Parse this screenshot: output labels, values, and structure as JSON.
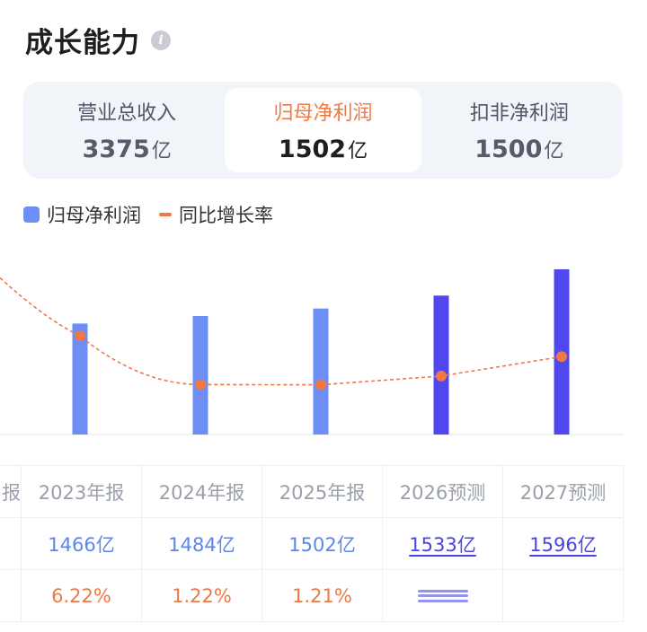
{
  "header": {
    "title": "成长能力",
    "info_icon": "info-icon"
  },
  "tabs": [
    {
      "label": "营业总收入",
      "value": "3375",
      "unit": "亿",
      "active": false
    },
    {
      "label": "归母净利润",
      "value": "1502",
      "unit": "亿",
      "active": true
    },
    {
      "label": "扣非净利润",
      "value": "1500",
      "unit": "亿",
      "active": false
    }
  ],
  "legend": {
    "bar_label": "归母净利润",
    "line_label": "同比增长率"
  },
  "colors": {
    "bar_actual": "#6c8ef5",
    "bar_forecast": "#5147ee",
    "line": "#f07845",
    "active_tab": "#f07845"
  },
  "chart_data": {
    "type": "bar",
    "categories": [
      "2023年报",
      "2024年报",
      "2025年报",
      "2026预测",
      "2027预测"
    ],
    "series": [
      {
        "name": "归母净利润",
        "unit": "亿",
        "values": [
          1466,
          1484,
          1502,
          1533,
          1596
        ]
      },
      {
        "name": "同比增长率",
        "unit": "%",
        "values": [
          6.22,
          1.22,
          1.21,
          2.1,
          4.1
        ]
      }
    ],
    "forecast_from_index": 3
  },
  "table": {
    "first_col_partial": "报",
    "headers": [
      "2023年报",
      "2024年报",
      "2025年报",
      "2026预测",
      "2027预测"
    ],
    "values": [
      "1466亿",
      "1484亿",
      "1502亿",
      "1533亿",
      "1596亿"
    ],
    "rates": [
      "6.22%",
      "1.22%",
      "1.21%"
    ]
  }
}
